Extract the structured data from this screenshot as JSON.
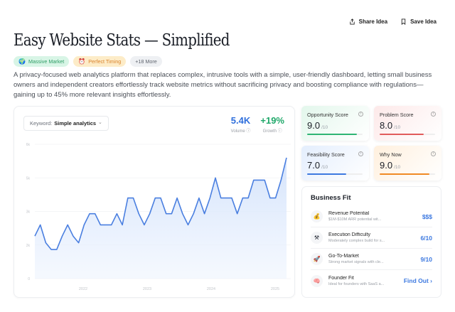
{
  "topbar": {
    "share_label": "Share Idea",
    "save_label": "Save Idea"
  },
  "title": "Easy Website Stats — Simplified",
  "tags": [
    {
      "label": "Massive Market",
      "icon": "🌍",
      "style": "green"
    },
    {
      "label": "Perfect Timing",
      "icon": "⏰",
      "style": "orange"
    },
    {
      "label": "+18 More",
      "icon": "",
      "style": "gray"
    }
  ],
  "description": "A privacy-focused web analytics platform that replaces complex, intrusive tools with a simple, user-friendly dashboard, letting small business owners and independent creators effortlessly track website metrics without sacrificing privacy and boosting compliance with regulations—gaining up to 45% more relevant insights effortlessly.",
  "keyword": {
    "label": "Keyword:",
    "value": "Simple analytics",
    "chevron": "⌄"
  },
  "stats": {
    "volume": {
      "value": "5.4K",
      "label": "Volume"
    },
    "growth": {
      "value": "+19%",
      "label": "Growth"
    }
  },
  "chart_data": {
    "type": "area",
    "title": "",
    "xlabel": "",
    "ylabel": "",
    "ylim": [
      0,
      6000
    ],
    "ytick_labels": [
      "0",
      "2k",
      "3k",
      "5k",
      "6k"
    ],
    "ytick_values": [
      0,
      1500,
      3000,
      4500,
      6000
    ],
    "xtick_labels": [
      "2022",
      "2023",
      "2024",
      "2025"
    ],
    "grid": true,
    "legend": "none",
    "line_color": "#4a7fe0",
    "series": [
      {
        "name": "Volume",
        "values": [
          1900,
          2400,
          1600,
          1300,
          1300,
          1900,
          2400,
          1900,
          1600,
          2400,
          2900,
          2900,
          2400,
          2400,
          2400,
          2900,
          2400,
          3600,
          3600,
          2900,
          2400,
          2900,
          3600,
          3600,
          2900,
          2900,
          3600,
          2900,
          2400,
          2900,
          3600,
          2900,
          3600,
          4500,
          3600,
          3600,
          3600,
          2900,
          3600,
          3600,
          4400,
          4400,
          4400,
          3600,
          3600,
          4400,
          5400
        ]
      }
    ]
  },
  "scores": [
    {
      "label": "Opportunity Score",
      "value": "9.0",
      "max": "/10",
      "pct": 90,
      "color": "#2fb574"
    },
    {
      "label": "Problem Score",
      "value": "8.0",
      "max": "/10",
      "pct": 80,
      "color": "#e15b5b"
    },
    {
      "label": "Feasibility Score",
      "value": "7.0",
      "max": "/10",
      "pct": 70,
      "color": "#3d79e0"
    },
    {
      "label": "Why Now",
      "value": "9.0",
      "max": "/10",
      "pct": 90,
      "color": "#f08a24"
    }
  ],
  "business_fit": {
    "title": "Business Fit",
    "rows": [
      {
        "icon": "💰",
        "title": "Revenue Potential",
        "desc": "$1M-$10M ARR potential wit...",
        "value": "$$$"
      },
      {
        "icon": "⚒",
        "title": "Execution Difficulty",
        "desc": "Moderately complex build for s...",
        "value": "6/10"
      },
      {
        "icon": "🚀",
        "title": "Go-To-Market",
        "desc": "Strong market signals with cle...",
        "value": "9/10"
      },
      {
        "icon": "🧠",
        "title": "Founder Fit",
        "desc": "Ideal for founders with SaaS a...",
        "value": "Find Out ›"
      }
    ]
  }
}
